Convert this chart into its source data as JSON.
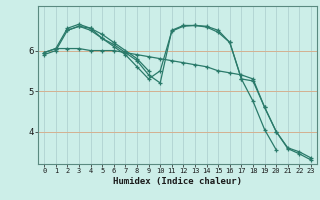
{
  "xlabel": "Humidex (Indice chaleur)",
  "bg_color": "#cceee8",
  "line_color": "#2a7a6a",
  "grid_color": "#aacccc",
  "horiz_grid_color": "#d4b090",
  "xlim": [
    -0.5,
    23.5
  ],
  "ylim": [
    3.2,
    7.1
  ],
  "yticks": [
    4,
    5,
    6
  ],
  "xticks": [
    0,
    1,
    2,
    3,
    4,
    5,
    6,
    7,
    8,
    9,
    10,
    11,
    12,
    13,
    14,
    15,
    16,
    17,
    18,
    19,
    20,
    21,
    22,
    23
  ],
  "series": [
    {
      "x": [
        0,
        1,
        2,
        3,
        4,
        5,
        6,
        7,
        8,
        9,
        10,
        11,
        12,
        13,
        14,
        15,
        16,
        17,
        18,
        19,
        20,
        21,
        22,
        23
      ],
      "y": [
        5.95,
        6.05,
        6.05,
        6.05,
        6.0,
        6.0,
        6.0,
        5.95,
        5.9,
        5.85,
        5.8,
        5.75,
        5.7,
        5.65,
        5.6,
        5.5,
        5.45,
        5.4,
        5.3,
        4.6,
        4.0,
        3.6,
        3.5,
        3.35
      ]
    },
    {
      "x": [
        0,
        1,
        2,
        3,
        4,
        5,
        6,
        7,
        8,
        9
      ],
      "y": [
        5.95,
        6.05,
        6.55,
        6.65,
        6.55,
        6.4,
        6.2,
        6.0,
        5.8,
        5.5
      ]
    },
    {
      "x": [
        0,
        1,
        2,
        3,
        4,
        5,
        6,
        7,
        8,
        9,
        10,
        11,
        12,
        13,
        14,
        15,
        16,
        17,
        18,
        19,
        20
      ],
      "y": [
        5.9,
        6.0,
        6.5,
        6.6,
        6.55,
        6.3,
        6.15,
        5.95,
        5.75,
        5.4,
        5.2,
        6.5,
        6.62,
        6.62,
        6.6,
        6.5,
        6.2,
        5.3,
        4.75,
        4.05,
        3.55
      ]
    },
    {
      "x": [
        2,
        3,
        4,
        5,
        6,
        7,
        8,
        9,
        10,
        11,
        12,
        13,
        14,
        15,
        16,
        17,
        18,
        19,
        20,
        21,
        22,
        23
      ],
      "y": [
        6.5,
        6.6,
        6.5,
        6.3,
        6.1,
        5.9,
        5.6,
        5.3,
        5.5,
        6.48,
        6.6,
        6.62,
        6.58,
        6.45,
        6.2,
        5.3,
        5.25,
        4.6,
        4.0,
        3.58,
        3.45,
        3.3
      ]
    }
  ]
}
